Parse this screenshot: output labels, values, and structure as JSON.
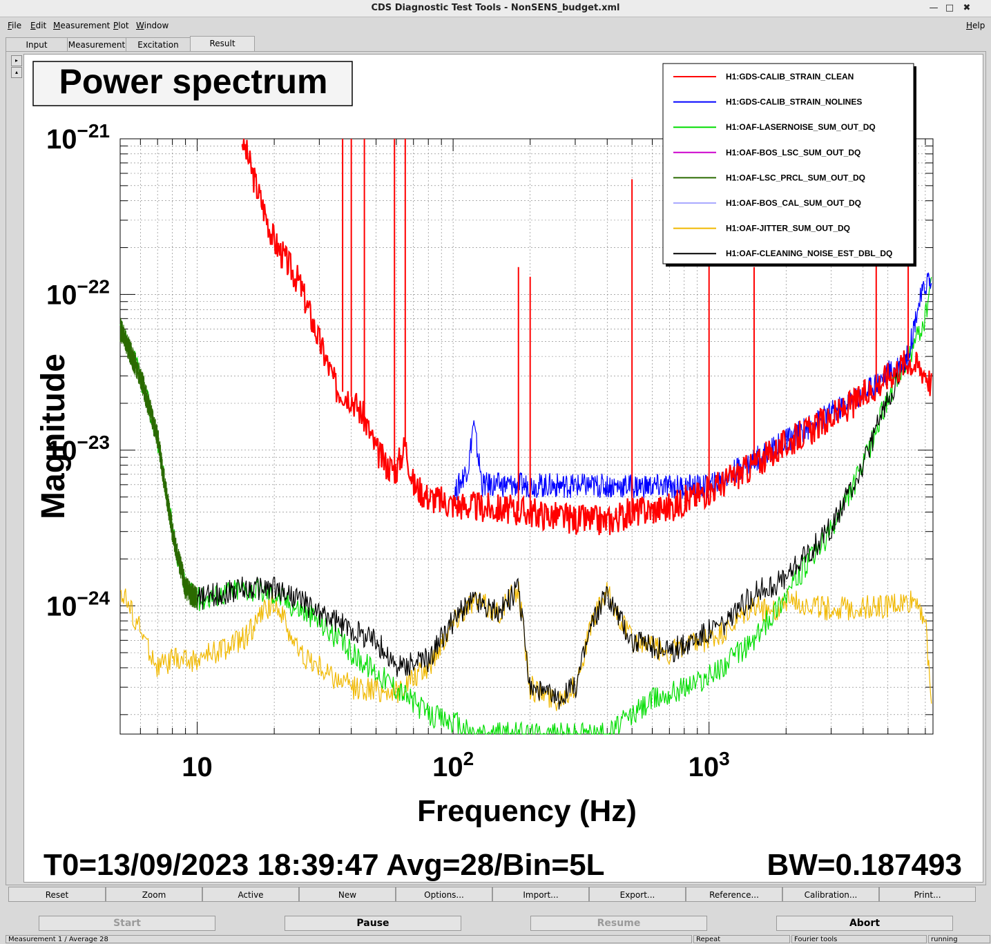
{
  "window": {
    "title": "CDS Diagnostic Test Tools - NonSENS_budget.xml",
    "minimize_glyph": "—",
    "maximize_glyph": "□",
    "close_glyph": "✖"
  },
  "menu": {
    "items": [
      "File",
      "Edit",
      "Measurement",
      "Plot",
      "Window"
    ],
    "help": "Help"
  },
  "tabs": [
    {
      "label": "Input"
    },
    {
      "label": "Measurement"
    },
    {
      "label": "Excitation"
    },
    {
      "label": "Result",
      "active": true
    }
  ],
  "side_buttons": {
    "up": "▸",
    "down": "▴"
  },
  "plot": {
    "title": "Power spectrum",
    "xlabel": "Frequency (Hz)",
    "ylabel": "Magnitude",
    "x_tick_labels": [
      {
        "base": "10",
        "exp": ""
      },
      {
        "base": "10",
        "exp": "2"
      },
      {
        "base": "10",
        "exp": "3"
      }
    ],
    "y_tick_labels": [
      {
        "base": "10",
        "exp": "−21"
      },
      {
        "base": "10",
        "exp": "−22"
      },
      {
        "base": "10",
        "exp": "−23"
      },
      {
        "base": "10",
        "exp": "−24"
      }
    ],
    "footer_left": "T0=13/09/2023 18:39:47 Avg=28/Bin=5L",
    "footer_right": "BW=0.187493"
  },
  "chart_data": {
    "type": "line",
    "x_scale": "log",
    "y_scale": "log",
    "xlim": [
      5,
      7500
    ],
    "ylim": [
      1.5e-25,
      1e-21
    ],
    "grid": true,
    "legend_position": "top-right",
    "series": [
      {
        "name": "H1:GDS-CALIB_STRAIN_CLEAN",
        "color": "#ff0000",
        "points": [
          [
            15,
            1e-21
          ],
          [
            17,
            5e-22
          ],
          [
            20,
            2.2e-22
          ],
          [
            25,
            1.2e-22
          ],
          [
            30,
            5e-23
          ],
          [
            35,
            2.5e-23
          ],
          [
            40,
            2.2e-23
          ],
          [
            45,
            1.6e-23
          ],
          [
            50,
            1e-23
          ],
          [
            55,
            8e-24
          ],
          [
            60,
            7.5e-24
          ],
          [
            65,
            1.1e-23
          ],
          [
            70,
            6e-24
          ],
          [
            80,
            5e-24
          ],
          [
            100,
            4.5e-24
          ],
          [
            150,
            4.2e-24
          ],
          [
            200,
            4e-24
          ],
          [
            300,
            3.6e-24
          ],
          [
            400,
            3.5e-24
          ],
          [
            500,
            4e-24
          ],
          [
            700,
            4.3e-24
          ],
          [
            1000,
            5.5e-24
          ],
          [
            1500,
            8e-24
          ],
          [
            2000,
            1.1e-23
          ],
          [
            3000,
            1.6e-23
          ],
          [
            4000,
            2.2e-23
          ],
          [
            5000,
            3e-23
          ],
          [
            6000,
            3.8e-23
          ],
          [
            7000,
            3.2e-23
          ],
          [
            7400,
            2.6e-23
          ]
        ],
        "peaks": [
          [
            37,
            1e-21
          ],
          [
            40,
            1e-21
          ],
          [
            45,
            1e-21
          ],
          [
            59,
            1e-21
          ],
          [
            65,
            1e-21
          ],
          [
            180,
            1.5e-22
          ],
          [
            200,
            1.3e-22
          ],
          [
            500,
            5.5e-22
          ],
          [
            1000,
            2e-22
          ],
          [
            1500,
            1.5e-22
          ],
          [
            4500,
            2e-22
          ],
          [
            6000,
            1.8e-22
          ]
        ]
      },
      {
        "name": "H1:GDS-CALIB_STRAIN_NOLINES",
        "color": "#0000ff",
        "points": [
          [
            100,
            5e-24
          ],
          [
            115,
            8e-24
          ],
          [
            120,
            1.5e-23
          ],
          [
            130,
            6e-24
          ],
          [
            1000,
            5.8e-24
          ],
          [
            2000,
            1.15e-23
          ],
          [
            4000,
            2.3e-23
          ],
          [
            6000,
            4e-23
          ],
          [
            6500,
            8e-23
          ],
          [
            7200,
            1.3e-22
          ],
          [
            7400,
            1.1e-22
          ]
        ]
      },
      {
        "name": "H1:OAF-LASERNOISE_SUM_OUT_DQ",
        "color": "#00dd00",
        "points": [
          [
            5,
            6e-23
          ],
          [
            6,
            3e-23
          ],
          [
            7,
            1.2e-23
          ],
          [
            8,
            3e-24
          ],
          [
            9,
            1.3e-24
          ],
          [
            10,
            1.1e-24
          ],
          [
            15,
            1.3e-24
          ],
          [
            20,
            1.2e-24
          ],
          [
            30,
            8e-25
          ],
          [
            40,
            5e-25
          ],
          [
            60,
            3e-25
          ],
          [
            80,
            2e-25
          ],
          [
            100,
            1.8e-25
          ],
          [
            120,
            1.5e-25
          ],
          [
            400,
            1.5e-25
          ],
          [
            600,
            2.5e-25
          ],
          [
            1000,
            3.5e-25
          ],
          [
            1500,
            6e-25
          ],
          [
            2000,
            1.2e-24
          ],
          [
            3000,
            3e-24
          ],
          [
            4000,
            8e-24
          ],
          [
            5000,
            2.2e-23
          ],
          [
            6000,
            3.8e-23
          ],
          [
            7000,
            7e-23
          ],
          [
            7400,
            1.3e-22
          ]
        ]
      },
      {
        "name": "H1:OAF-BOS_LSC_SUM_OUT_DQ",
        "color": "#cc00cc",
        "points": []
      },
      {
        "name": "H1:OAF-LSC_PRCL_SUM_OUT_DQ",
        "color": "#2a6a00",
        "points": [
          [
            5,
            6e-23
          ],
          [
            6,
            3e-23
          ],
          [
            7,
            1.2e-23
          ],
          [
            8,
            3e-24
          ],
          [
            9,
            1.3e-24
          ],
          [
            10,
            1.1e-24
          ]
        ]
      },
      {
        "name": "H1:OAF-BOS_CAL_SUM_OUT_DQ",
        "color": "#a8a8ff",
        "points": []
      },
      {
        "name": "H1:OAF-JITTER_SUM_OUT_DQ",
        "color": "#f0b800",
        "points": [
          [
            5,
            1.3e-24
          ],
          [
            6,
            7e-25
          ],
          [
            7,
            4e-25
          ],
          [
            8,
            4.5e-25
          ],
          [
            10,
            4.5e-25
          ],
          [
            15,
            6e-25
          ],
          [
            20,
            1.1e-24
          ],
          [
            25,
            5e-25
          ],
          [
            30,
            4e-25
          ],
          [
            40,
            3e-25
          ],
          [
            60,
            2.8e-25
          ],
          [
            80,
            4e-25
          ],
          [
            100,
            8e-25
          ],
          [
            120,
            1.1e-24
          ],
          [
            150,
            9e-25
          ],
          [
            180,
            1.3e-24
          ],
          [
            200,
            3e-25
          ],
          [
            250,
            2.5e-25
          ],
          [
            300,
            3e-25
          ],
          [
            350,
            8e-25
          ],
          [
            400,
            1.2e-24
          ],
          [
            500,
            6e-25
          ],
          [
            700,
            5e-25
          ],
          [
            1000,
            6e-25
          ],
          [
            1200,
            7e-25
          ],
          [
            1500,
            1e-24
          ],
          [
            1800,
            9e-25
          ],
          [
            2000,
            1.1e-24
          ],
          [
            3000,
            9.5e-25
          ],
          [
            5000,
            1e-24
          ],
          [
            6000,
            1.05e-24
          ],
          [
            6500,
            1.1e-24
          ],
          [
            7000,
            8e-25
          ],
          [
            7400,
            2.2e-25
          ]
        ]
      },
      {
        "name": "H1:OAF-CLEANING_NOISE_EST_DBL_DQ",
        "color": "#000000",
        "points": [
          [
            10,
            1.1e-24
          ],
          [
            15,
            1.3e-24
          ],
          [
            20,
            1.3e-24
          ],
          [
            25,
            1.1e-24
          ],
          [
            30,
            9e-25
          ],
          [
            40,
            7e-25
          ],
          [
            50,
            6e-25
          ],
          [
            60,
            4e-25
          ],
          [
            80,
            4.5e-25
          ],
          [
            100,
            8e-25
          ],
          [
            120,
            1.1e-24
          ],
          [
            150,
            9e-25
          ],
          [
            180,
            1.3e-24
          ],
          [
            200,
            3e-25
          ],
          [
            250,
            2.5e-25
          ],
          [
            300,
            3e-25
          ],
          [
            350,
            8e-25
          ],
          [
            400,
            1.2e-24
          ],
          [
            500,
            6e-25
          ],
          [
            700,
            5e-25
          ],
          [
            1000,
            7e-25
          ],
          [
            1200,
            8e-25
          ],
          [
            1500,
            1.2e-24
          ],
          [
            2000,
            1.5e-24
          ],
          [
            3000,
            3.2e-24
          ],
          [
            4000,
            8e-24
          ],
          [
            5000,
            2.2e-23
          ],
          [
            6000,
            3.8e-23
          ]
        ]
      }
    ]
  },
  "toolbar": [
    "Reset",
    "Zoom",
    "Active",
    "New",
    "Options...",
    "Import...",
    "Export...",
    "Reference...",
    "Calibration...",
    "Print..."
  ],
  "controls": [
    {
      "label": "Start",
      "enabled": false
    },
    {
      "label": "Pause",
      "enabled": true
    },
    {
      "label": "Resume",
      "enabled": false
    },
    {
      "label": "Abort",
      "enabled": true
    }
  ],
  "status": {
    "left": "Measurement 1 / Average 28",
    "repeat": "Repeat",
    "fourier": "Fourier tools",
    "state": "running"
  }
}
